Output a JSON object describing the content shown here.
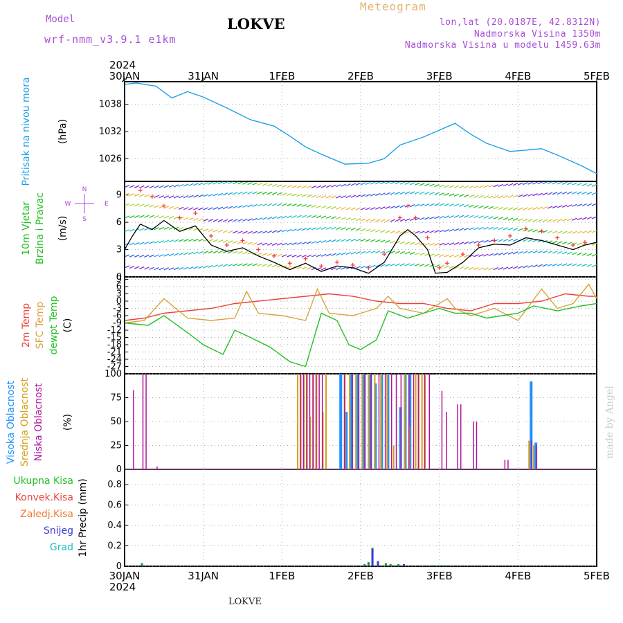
{
  "header": {
    "model_label": "Model",
    "model_name": "wrf-nmm_v3.9.1  e1km",
    "station": "LOKVE",
    "title": "Meteogram",
    "coords": "lon,lat (20.0187E, 42.8312N)",
    "elevation": "Nadmorska Visina 1350m",
    "model_elevation": "Nadmorska Visina u modelu 1459.63m",
    "watermark": "made by Angel"
  },
  "footer": {
    "station": "LOKVE"
  },
  "colors": {
    "pressure": "#1ea0e6",
    "temp2m": "#e8433b",
    "sfc_temp": "#d9a23a",
    "dewpoint": "#22c022",
    "high_cloud": "#1e90ff",
    "mid_cloud": "#d4a017",
    "low_cloud": "#b0149b",
    "wind_speed": "#000000",
    "gust": "#ff3030",
    "total_precip": "#1a8c3a",
    "snow": "#3b3bd9",
    "grad": "#22c0c0"
  },
  "chart_data": [
    {
      "type": "line",
      "id": "pressure",
      "top_year": "2024",
      "x_ticks": [
        "30JAN",
        "31JAN",
        "1FEB",
        "2FEB",
        "3FEB",
        "4FEB",
        "5FEB"
      ],
      "ylabel": "Pritisak na nivou mora",
      "unit": "(hPa)",
      "yticks": [
        "1038",
        "1032",
        "1026"
      ],
      "ylim": [
        1021,
        1043
      ],
      "series": [
        {
          "x": [
            0,
            0.15,
            0.4,
            0.6,
            0.8,
            1.0,
            1.3,
            1.6,
            1.9,
            2.1,
            2.3,
            2.5,
            2.8,
            3.1,
            3.3,
            3.5,
            3.8,
            4.2,
            4.4,
            4.6,
            4.9,
            5.3,
            5.5,
            5.8,
            6.0
          ],
          "values": [
            1042.4,
            1042.7,
            1042.0,
            1039.4,
            1040.8,
            1039.6,
            1037.2,
            1034.6,
            1033.2,
            1031.0,
            1028.6,
            1027.0,
            1024.8,
            1025.0,
            1026.0,
            1029.0,
            1030.8,
            1033.8,
            1031.4,
            1029.4,
            1027.6,
            1028.2,
            1026.8,
            1024.5,
            1022.7
          ]
        }
      ]
    },
    {
      "type": "line",
      "id": "wind",
      "ylabel": [
        "10m Vjetar",
        "Brzina i Pravac"
      ],
      "unit": "(m/s)",
      "compass": {
        "north": "N",
        "south": "S",
        "west": "W",
        "east": "E"
      },
      "yticks": [
        "9",
        "6",
        "3",
        "0"
      ],
      "ylim": [
        0,
        10.5
      ],
      "series": [
        {
          "name": "speed",
          "x": [
            0,
            0.1,
            0.2,
            0.35,
            0.5,
            0.7,
            0.9,
            1.1,
            1.3,
            1.5,
            1.7,
            1.9,
            2.1,
            2.3,
            2.5,
            2.7,
            2.9,
            3.1,
            3.3,
            3.5,
            3.6,
            3.7,
            3.85,
            3.95,
            4.1,
            4.3,
            4.5,
            4.7,
            4.9,
            5.1,
            5.3,
            5.5,
            5.7,
            5.85,
            6.0
          ],
          "values": [
            3,
            4.5,
            5.8,
            5.2,
            6.2,
            5.0,
            5.6,
            3.5,
            2.8,
            3.2,
            2.3,
            1.6,
            0.8,
            1.5,
            0.6,
            1.2,
            1.0,
            0.4,
            1.6,
            4.5,
            5.2,
            4.5,
            3.0,
            0.4,
            0.5,
            1.6,
            3.2,
            3.6,
            3.5,
            4.3,
            4.0,
            3.5,
            3.0,
            3.5,
            3.8
          ]
        },
        {
          "name": "gust",
          "x": [
            0.2,
            0.35,
            0.5,
            0.7,
            0.9,
            1.1,
            1.3,
            1.5,
            1.7,
            1.9,
            2.1,
            2.3,
            2.5,
            2.7,
            2.9,
            3.1,
            3.3,
            3.5,
            3.6,
            3.7,
            3.85,
            4.0,
            4.1,
            4.3,
            4.5,
            4.7,
            4.9,
            5.1,
            5.3,
            5.5,
            5.7,
            5.85
          ],
          "values": [
            9.5,
            8.8,
            7.8,
            6.5,
            7.0,
            4.5,
            3.5,
            4.0,
            3.0,
            2.3,
            1.5,
            2.0,
            1.2,
            1.6,
            1.3,
            1.0,
            2.5,
            6.5,
            7.8,
            6.5,
            4.3,
            1.0,
            1.5,
            2.5,
            3.5,
            4.0,
            4.5,
            5.3,
            5.0,
            4.3,
            3.5,
            3.8
          ]
        }
      ]
    },
    {
      "type": "line",
      "id": "temperature",
      "ylabel": [
        "2m Temp",
        "SFC Temp",
        "dewpt Temp"
      ],
      "unit": "(C)",
      "yticks": [
        "9",
        "6",
        "3",
        "0",
        "-3",
        "-6",
        "-9",
        "-12",
        "-15",
        "-18",
        "-21",
        "-24",
        "-27"
      ],
      "ylim": [
        -30,
        10
      ],
      "series": [
        {
          "name": "2m Temp",
          "x": [
            0,
            0.25,
            0.5,
            0.8,
            1.1,
            1.4,
            1.7,
            2.0,
            2.3,
            2.6,
            2.9,
            3.2,
            3.5,
            3.8,
            4.1,
            4.4,
            4.7,
            5.0,
            5.3,
            5.6,
            5.9,
            6.0
          ],
          "values": [
            -8,
            -7,
            -5,
            -4,
            -3,
            -1,
            0,
            1,
            2,
            3,
            2,
            0,
            -1,
            -1,
            -3,
            -4,
            -1,
            -1,
            0,
            3,
            2,
            2
          ]
        },
        {
          "name": "SFC Temp",
          "x": [
            0,
            0.25,
            0.5,
            0.8,
            1.1,
            1.4,
            1.55,
            1.7,
            2.0,
            2.3,
            2.45,
            2.6,
            2.9,
            3.2,
            3.35,
            3.5,
            3.8,
            4.1,
            4.2,
            4.4,
            4.7,
            5.0,
            5.3,
            5.5,
            5.7,
            5.9,
            6.0
          ],
          "values": [
            -9,
            -8,
            1,
            -7,
            -8,
            -7,
            4,
            -5,
            -6,
            -8,
            5,
            -5,
            -6,
            -3,
            2,
            -3,
            -5,
            1,
            -3,
            -6,
            -3,
            -8,
            5,
            -3,
            -1,
            7,
            1
          ]
        },
        {
          "name": "dewpt Temp",
          "x": [
            0,
            0.3,
            0.5,
            0.8,
            1.0,
            1.25,
            1.4,
            1.6,
            1.85,
            2.1,
            2.3,
            2.5,
            2.7,
            2.85,
            3.0,
            3.2,
            3.35,
            3.6,
            3.8,
            4.0,
            4.2,
            4.4,
            4.6,
            4.8,
            5.0,
            5.2,
            5.5,
            5.8,
            6.0
          ],
          "values": [
            -9,
            -10,
            -6,
            -13,
            -18,
            -22,
            -12,
            -15,
            -19,
            -25,
            -27,
            -5,
            -8,
            -18,
            -20,
            -16,
            -4,
            -7,
            -5,
            -3,
            -5,
            -5,
            -7,
            -6,
            -5,
            -2,
            -4,
            -2,
            -1
          ]
        }
      ]
    },
    {
      "type": "bar",
      "id": "clouds",
      "ylabel": [
        "Visoka Oblacnost",
        "Srednja Oblacnost",
        "Niska Oblacnost"
      ],
      "unit": "(%)",
      "yticks": [
        "100",
        "75",
        "50",
        "25",
        "0"
      ],
      "ylim": [
        0,
        100
      ],
      "series": [
        {
          "name": "Visoka Oblacnost",
          "x": [
            2.76,
            2.83,
            2.9,
            2.98,
            3.06,
            3.14,
            3.2,
            3.28,
            3.36,
            3.52,
            3.58,
            3.64,
            5.18,
            5.24
          ],
          "values": [
            100,
            60,
            100,
            100,
            100,
            100,
            90,
            100,
            100,
            65,
            100,
            100,
            92,
            28
          ]
        },
        {
          "name": "Srednja Oblacnost",
          "x": [
            2.2,
            2.24,
            2.28,
            2.32,
            2.36,
            2.4,
            2.44,
            2.52,
            2.56,
            2.8,
            2.86,
            2.94,
            3.02,
            3.1,
            3.18,
            3.26,
            3.34,
            3.42,
            3.56,
            3.62,
            3.7,
            3.74,
            3.78,
            3.82,
            5.14,
            5.2
          ],
          "values": [
            100,
            100,
            100,
            100,
            55,
            100,
            100,
            60,
            100,
            100,
            100,
            100,
            100,
            100,
            100,
            100,
            100,
            25,
            100,
            45,
            100,
            100,
            100,
            100,
            30,
            25
          ]
        },
        {
          "name": "Niska Oblacnost",
          "x": [
            0.1,
            0.22,
            0.26,
            0.4,
            2.22,
            2.26,
            2.3,
            2.34,
            2.38,
            2.42,
            2.46,
            2.5,
            2.78,
            2.88,
            2.96,
            3.04,
            3.12,
            3.22,
            3.3,
            3.38,
            3.44,
            3.5,
            3.6,
            3.66,
            3.72,
            3.8,
            3.86,
            4.02,
            4.08,
            4.22,
            4.26,
            4.42,
            4.46,
            4.82,
            4.86,
            5.16,
            5.22
          ],
          "values": [
            83,
            100,
            100,
            3,
            100,
            100,
            100,
            100,
            100,
            100,
            100,
            100,
            100,
            100,
            100,
            100,
            100,
            100,
            100,
            100,
            100,
            100,
            100,
            100,
            100,
            100,
            100,
            82,
            60,
            68,
            68,
            50,
            50,
            10,
            10,
            30,
            25
          ]
        }
      ]
    },
    {
      "type": "bar",
      "id": "precip",
      "ylabel": "1hr Precip",
      "unit": "(mm)",
      "legend": [
        "Ukupna Kisa",
        "Konvek.Kisa",
        "Zaledj.Kisa",
        "Snijeg",
        "Grad"
      ],
      "yticks": [
        "0.8",
        "0.6",
        "0.4",
        "0.2",
        "0"
      ],
      "ylim": [
        0,
        0.95
      ],
      "bottom_year": "2024",
      "series": [
        {
          "name": "Ukupna Kisa",
          "x": [
            0.22,
            3.05,
            3.1,
            3.15,
            3.22,
            3.32,
            3.38,
            3.48,
            3.55,
            3.92,
            3.98,
            4.05,
            4.12
          ],
          "values": [
            0.03,
            0.02,
            0.04,
            0.18,
            0.05,
            0.03,
            0.02,
            0.02,
            0.02,
            0.01,
            0.01,
            0.01,
            0.01
          ]
        },
        {
          "name": "Snijeg",
          "x": [
            3.15,
            3.22,
            3.55
          ],
          "values": [
            0.17,
            0.05,
            0.02
          ]
        }
      ]
    }
  ]
}
